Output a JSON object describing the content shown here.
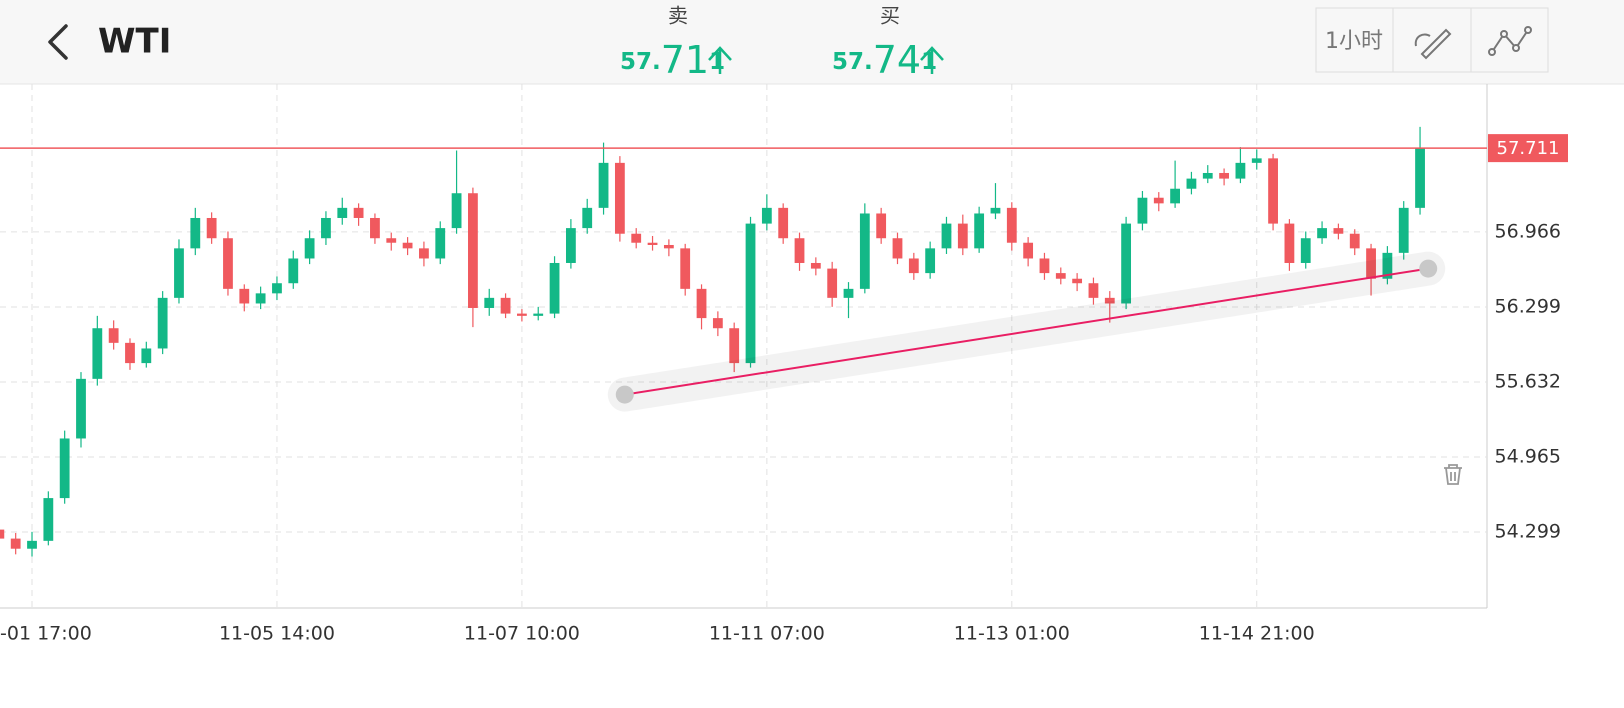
{
  "header": {
    "symbol": "WTI",
    "sell": {
      "label": "卖",
      "price_parts": [
        "57.",
        "71",
        "1"
      ]
    },
    "buy": {
      "label": "买",
      "price_parts": [
        "57.",
        "74",
        "1"
      ]
    },
    "interval": "1小时"
  },
  "chart": {
    "type": "candlestick",
    "ylim": [
      53.623,
      58.281
    ],
    "yticks": [
      56.966,
      56.299,
      55.632,
      54.965,
      54.299
    ],
    "xlim": [
      0.04,
      91.1
    ],
    "xticks": [
      {
        "value": 2,
        "label": "-01 17:00"
      },
      {
        "value": 17,
        "label": "11-05 14:00"
      },
      {
        "value": 32,
        "label": "11-07 10:00"
      },
      {
        "value": 47,
        "label": "11-11 07:00"
      },
      {
        "value": 62,
        "label": "11-13 01:00"
      },
      {
        "value": 77,
        "label": "11-14 21:00"
      }
    ],
    "grid": true,
    "up_color": "#13b887",
    "down_color": "#f0595e",
    "last_price": 57.711,
    "last_price_color": "#f0595e",
    "trendline": {
      "from": [
        38.3,
        55.52
      ],
      "to": [
        87.5,
        56.64
      ],
      "color": "#e91e63"
    },
    "ohlc": [
      [
        54.32,
        54.38,
        54.2,
        54.24
      ],
      [
        54.24,
        54.29,
        54.1,
        54.15
      ],
      [
        54.15,
        54.3,
        54.08,
        54.22
      ],
      [
        54.22,
        54.66,
        54.18,
        54.6
      ],
      [
        54.6,
        55.2,
        54.55,
        55.13
      ],
      [
        55.13,
        55.72,
        55.05,
        55.66
      ],
      [
        55.66,
        56.22,
        55.6,
        56.11
      ],
      [
        56.11,
        56.18,
        55.92,
        55.98
      ],
      [
        55.98,
        56.02,
        55.74,
        55.8
      ],
      [
        55.8,
        55.99,
        55.76,
        55.93
      ],
      [
        55.93,
        56.44,
        55.88,
        56.38
      ],
      [
        56.38,
        56.9,
        56.33,
        56.82
      ],
      [
        56.82,
        57.18,
        56.76,
        57.09
      ],
      [
        57.09,
        57.14,
        56.86,
        56.91
      ],
      [
        56.91,
        56.97,
        56.4,
        56.46
      ],
      [
        56.46,
        56.5,
        56.26,
        56.33
      ],
      [
        56.33,
        56.48,
        56.28,
        56.42
      ],
      [
        56.42,
        56.57,
        56.36,
        56.51
      ],
      [
        56.51,
        56.8,
        56.46,
        56.73
      ],
      [
        56.73,
        56.98,
        56.68,
        56.91
      ],
      [
        56.91,
        57.15,
        56.85,
        57.09
      ],
      [
        57.09,
        57.27,
        57.03,
        57.18
      ],
      [
        57.18,
        57.22,
        57.02,
        57.09
      ],
      [
        57.09,
        57.13,
        56.86,
        56.91
      ],
      [
        56.91,
        56.96,
        56.8,
        56.87
      ],
      [
        56.87,
        56.92,
        56.76,
        56.82
      ],
      [
        56.82,
        56.88,
        56.66,
        56.73
      ],
      [
        56.73,
        57.06,
        56.68,
        57.0
      ],
      [
        57.0,
        57.69,
        56.95,
        57.31
      ],
      [
        57.31,
        57.36,
        56.12,
        56.29
      ],
      [
        56.29,
        56.46,
        56.22,
        56.38
      ],
      [
        56.38,
        56.42,
        56.2,
        56.24
      ],
      [
        56.24,
        56.28,
        56.17,
        56.22
      ],
      [
        56.22,
        56.3,
        56.18,
        56.24
      ],
      [
        56.24,
        56.75,
        56.2,
        56.69
      ],
      [
        56.69,
        57.08,
        56.64,
        57.0
      ],
      [
        57.0,
        57.26,
        56.95,
        57.18
      ],
      [
        57.18,
        57.76,
        57.12,
        57.58
      ],
      [
        57.58,
        57.64,
        56.88,
        56.95
      ],
      [
        56.95,
        57.0,
        56.82,
        56.87
      ],
      [
        56.87,
        56.93,
        56.8,
        56.85
      ],
      [
        56.85,
        56.9,
        56.75,
        56.82
      ],
      [
        56.82,
        56.86,
        56.4,
        56.46
      ],
      [
        56.46,
        56.5,
        56.1,
        56.2
      ],
      [
        56.2,
        56.26,
        56.04,
        56.11
      ],
      [
        56.11,
        56.16,
        55.72,
        55.8
      ],
      [
        55.8,
        57.1,
        55.76,
        57.04
      ],
      [
        57.04,
        57.3,
        56.98,
        57.18
      ],
      [
        57.18,
        57.22,
        56.86,
        56.91
      ],
      [
        56.91,
        56.96,
        56.62,
        56.69
      ],
      [
        56.69,
        56.74,
        56.58,
        56.64
      ],
      [
        56.64,
        56.7,
        56.3,
        56.38
      ],
      [
        56.38,
        56.52,
        56.2,
        56.46
      ],
      [
        56.46,
        57.22,
        56.42,
        57.13
      ],
      [
        57.13,
        57.18,
        56.86,
        56.91
      ],
      [
        56.91,
        56.96,
        56.68,
        56.73
      ],
      [
        56.73,
        56.78,
        56.54,
        56.6
      ],
      [
        56.6,
        56.88,
        56.55,
        56.82
      ],
      [
        56.82,
        57.1,
        56.77,
        57.04
      ],
      [
        57.04,
        57.12,
        56.76,
        56.82
      ],
      [
        56.82,
        57.19,
        56.78,
        57.13
      ],
      [
        57.13,
        57.4,
        57.08,
        57.18
      ],
      [
        57.18,
        57.23,
        56.8,
        56.87
      ],
      [
        56.87,
        56.92,
        56.66,
        56.73
      ],
      [
        56.73,
        56.78,
        56.54,
        56.6
      ],
      [
        56.6,
        56.65,
        56.5,
        56.55
      ],
      [
        56.55,
        56.6,
        56.44,
        56.51
      ],
      [
        56.51,
        56.56,
        56.32,
        56.38
      ],
      [
        56.38,
        56.44,
        56.16,
        56.33
      ],
      [
        56.33,
        57.1,
        56.28,
        57.04
      ],
      [
        57.04,
        57.33,
        56.98,
        57.27
      ],
      [
        57.27,
        57.32,
        57.15,
        57.22
      ],
      [
        57.22,
        57.6,
        57.18,
        57.35
      ],
      [
        57.35,
        57.5,
        57.3,
        57.44
      ],
      [
        57.44,
        57.56,
        57.4,
        57.49
      ],
      [
        57.49,
        57.53,
        57.38,
        57.44
      ],
      [
        57.44,
        57.72,
        57.4,
        57.58
      ],
      [
        57.58,
        57.7,
        57.52,
        57.62
      ],
      [
        57.62,
        57.66,
        56.98,
        57.04
      ],
      [
        57.04,
        57.08,
        56.62,
        56.69
      ],
      [
        56.69,
        56.97,
        56.64,
        56.91
      ],
      [
        56.91,
        57.06,
        56.86,
        57.0
      ],
      [
        57.0,
        57.04,
        56.9,
        56.95
      ],
      [
        56.95,
        56.99,
        56.76,
        56.82
      ],
      [
        56.82,
        56.86,
        56.4,
        56.55
      ],
      [
        56.55,
        56.84,
        56.5,
        56.78
      ],
      [
        56.78,
        57.24,
        56.72,
        57.18
      ],
      [
        57.18,
        57.9,
        57.12,
        57.71
      ]
    ]
  }
}
